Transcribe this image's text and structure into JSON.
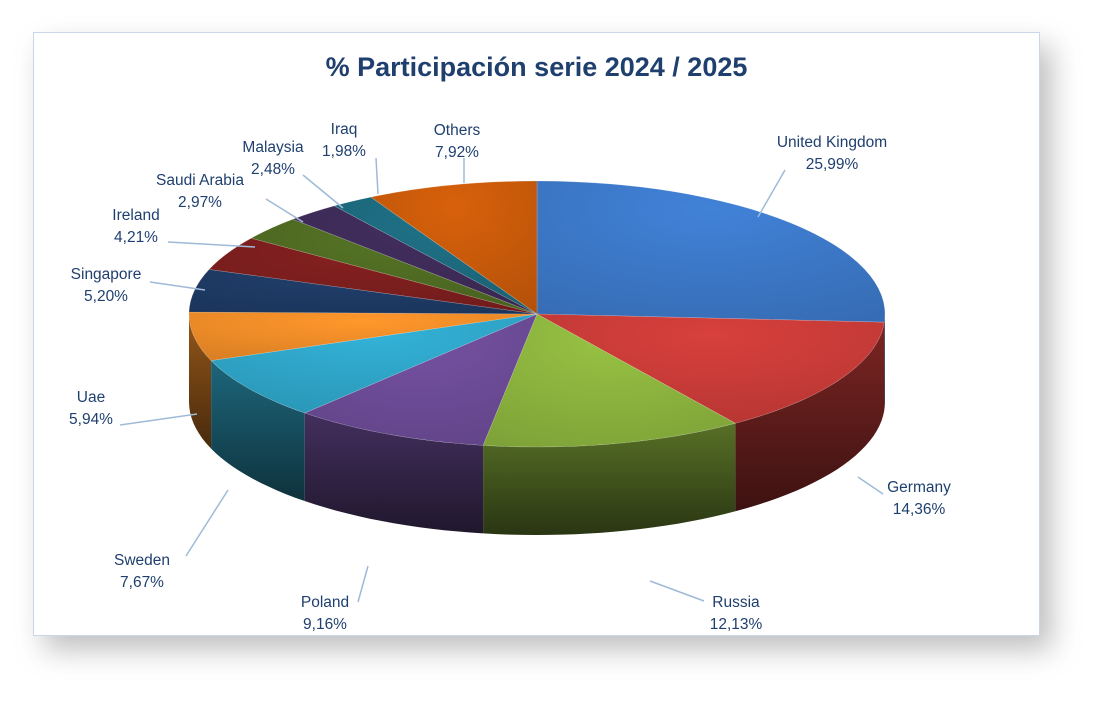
{
  "chart_data": {
    "type": "pie",
    "style": "3d",
    "title": "% Participación serie 2024 / 2025",
    "legend": "none",
    "labels_position": "outside-with-leaders",
    "slices": [
      {
        "name": "United Kingdom",
        "label": "United Kingdom",
        "value": 25.99,
        "value_label": "25,99%",
        "color": "#3c78c8"
      },
      {
        "name": "Germany",
        "label": "Germany",
        "value": 14.36,
        "value_label": "14,36%",
        "color": "#c83b38"
      },
      {
        "name": "Russia",
        "label": "Russia",
        "value": 12.13,
        "value_label": "12,13%",
        "color": "#8cb43e"
      },
      {
        "name": "Poland",
        "label": "Poland",
        "value": 9.16,
        "value_label": "9,16%",
        "color": "#6c4b96"
      },
      {
        "name": "Sweden",
        "label": "Sweden",
        "value": 7.67,
        "value_label": "7,67%",
        "color": "#2fa5c8"
      },
      {
        "name": "Uae",
        "label": "Uae",
        "value": 5.94,
        "value_label": "5,94%",
        "color": "#f08c28"
      },
      {
        "name": "Singapore",
        "label": "Singapore",
        "value": 5.2,
        "value_label": "5,20%",
        "color": "#1e3a64"
      },
      {
        "name": "Ireland",
        "label": "Ireland",
        "value": 4.21,
        "value_label": "4,21%",
        "color": "#7c1e1e"
      },
      {
        "name": "Saudi Arabia",
        "label": "Saudi Arabia",
        "value": 2.97,
        "value_label": "2,97%",
        "color": "#4f6b22"
      },
      {
        "name": "Malaysia",
        "label": "Malaysia",
        "value": 2.48,
        "value_label": "2,48%",
        "color": "#3e2b58"
      },
      {
        "name": "Iraq",
        "label": "Iraq",
        "value": 1.98,
        "value_label": "1,98%",
        "color": "#1d6a7e"
      },
      {
        "name": "Others",
        "label": "Others",
        "value": 7.92,
        "value_label": "7,92%",
        "color": "#c85a0a"
      }
    ]
  }
}
